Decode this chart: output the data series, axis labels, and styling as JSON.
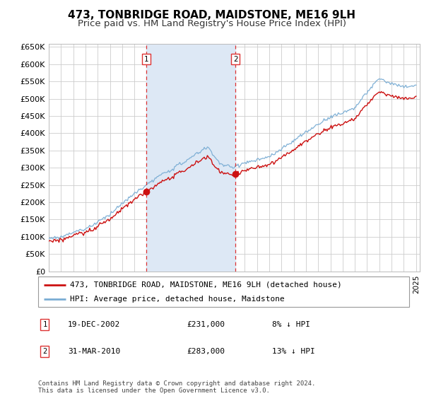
{
  "title": "473, TONBRIDGE ROAD, MAIDSTONE, ME16 9LH",
  "subtitle": "Price paid vs. HM Land Registry's House Price Index (HPI)",
  "ylim": [
    0,
    660000
  ],
  "yticks": [
    0,
    50000,
    100000,
    150000,
    200000,
    250000,
    300000,
    350000,
    400000,
    450000,
    500000,
    550000,
    600000,
    650000
  ],
  "ytick_labels": [
    "£0",
    "£50K",
    "£100K",
    "£150K",
    "£200K",
    "£250K",
    "£300K",
    "£350K",
    "£400K",
    "£450K",
    "£500K",
    "£550K",
    "£600K",
    "£650K"
  ],
  "hpi_color": "#7aadd4",
  "price_color": "#cc1111",
  "vline_color": "#dd3333",
  "background_color": "#ffffff",
  "chart_bg_color": "#ffffff",
  "grid_color": "#cccccc",
  "span_color": "#dde8f5",
  "sale1_date": 2002.95,
  "sale1_price": 231000,
  "sale2_date": 2010.25,
  "sale2_price": 283000,
  "legend_label_price": "473, TONBRIDGE ROAD, MAIDSTONE, ME16 9LH (detached house)",
  "legend_label_hpi": "HPI: Average price, detached house, Maidstone",
  "annotation1": [
    "1",
    "19-DEC-2002",
    "£231,000",
    "8% ↓ HPI"
  ],
  "annotation2": [
    "2",
    "31-MAR-2010",
    "£283,000",
    "13% ↓ HPI"
  ],
  "footer": "Contains HM Land Registry data © Crown copyright and database right 2024.\nThis data is licensed under the Open Government Licence v3.0.",
  "title_fontsize": 11,
  "subtitle_fontsize": 9.5,
  "tick_fontsize": 8,
  "legend_fontsize": 8,
  "footer_fontsize": 6.5
}
